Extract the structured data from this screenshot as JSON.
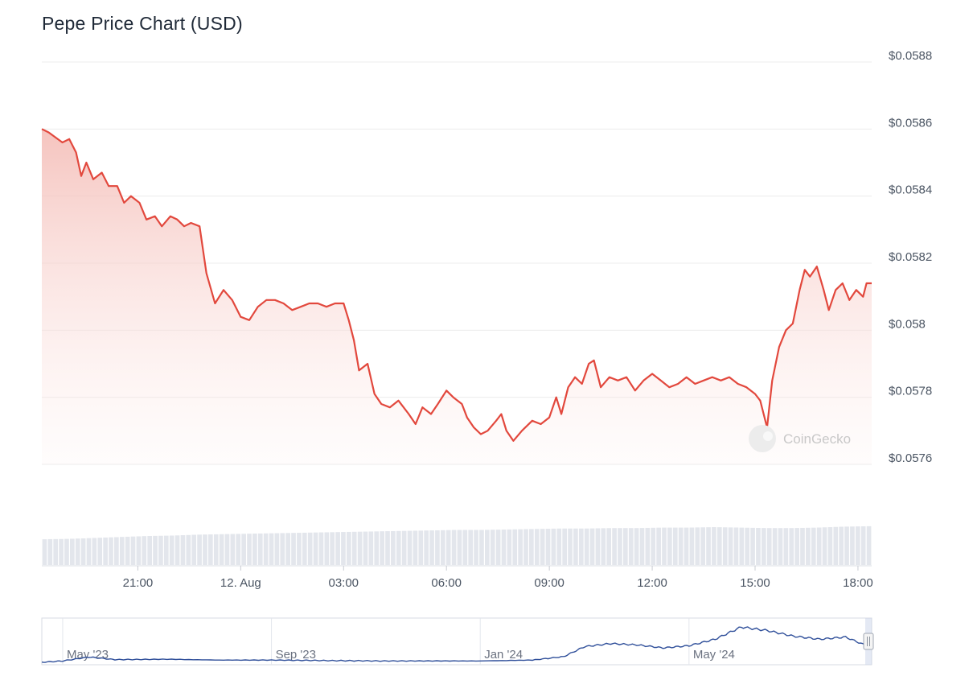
{
  "header": {
    "title": "Pepe Price Chart (USD)"
  },
  "watermark": {
    "text": "CoinGecko",
    "icon": "coingecko-logo-icon"
  },
  "colors": {
    "line": "#e2483d",
    "area_top": "#f6c8c3",
    "volume": "#e3e6ec",
    "navigator_line": "#2f4f9a",
    "grid": "#ececec"
  },
  "chart_data": {
    "type": "area",
    "title": "Pepe Price Chart (USD)",
    "y_ticks": [
      "$0.0576",
      "$0.0578",
      "$0.058",
      "$0.0582",
      "$0.0584",
      "$0.0586",
      "$0.0588"
    ],
    "ylim": [
      0.0576,
      0.0588
    ],
    "x_ticks": [
      "21:00",
      "12. Aug",
      "03:00",
      "06:00",
      "09:00",
      "12:00",
      "15:00",
      "18:00"
    ],
    "x_tick_hours": [
      21,
      24,
      27,
      30,
      33,
      36,
      39,
      42
    ],
    "xlim_hours": [
      18.2,
      42.4
    ],
    "price_points": [
      [
        18.2,
        0.0586
      ],
      [
        18.4,
        0.05859
      ],
      [
        18.8,
        0.05856
      ],
      [
        19.0,
        0.05857
      ],
      [
        19.2,
        0.05853
      ],
      [
        19.35,
        0.05846
      ],
      [
        19.5,
        0.0585
      ],
      [
        19.7,
        0.05845
      ],
      [
        19.95,
        0.05847
      ],
      [
        20.15,
        0.05843
      ],
      [
        20.4,
        0.05843
      ],
      [
        20.6,
        0.05838
      ],
      [
        20.8,
        0.0584
      ],
      [
        21.05,
        0.05838
      ],
      [
        21.25,
        0.05833
      ],
      [
        21.5,
        0.05834
      ],
      [
        21.7,
        0.05831
      ],
      [
        21.95,
        0.05834
      ],
      [
        22.15,
        0.05833
      ],
      [
        22.35,
        0.05831
      ],
      [
        22.55,
        0.05832
      ],
      [
        22.8,
        0.05831
      ],
      [
        23.0,
        0.05817
      ],
      [
        23.25,
        0.05808
      ],
      [
        23.5,
        0.05812
      ],
      [
        23.75,
        0.05809
      ],
      [
        24.0,
        0.05804
      ],
      [
        24.25,
        0.05803
      ],
      [
        24.5,
        0.05807
      ],
      [
        24.75,
        0.05809
      ],
      [
        25.0,
        0.05809
      ],
      [
        25.25,
        0.05808
      ],
      [
        25.5,
        0.05806
      ],
      [
        25.75,
        0.05807
      ],
      [
        26.0,
        0.05808
      ],
      [
        26.25,
        0.05808
      ],
      [
        26.5,
        0.05807
      ],
      [
        26.75,
        0.05808
      ],
      [
        27.0,
        0.05808
      ],
      [
        27.15,
        0.05803
      ],
      [
        27.3,
        0.05797
      ],
      [
        27.45,
        0.05788
      ],
      [
        27.7,
        0.0579
      ],
      [
        27.9,
        0.05781
      ],
      [
        28.1,
        0.05778
      ],
      [
        28.35,
        0.05777
      ],
      [
        28.6,
        0.05779
      ],
      [
        28.9,
        0.05775
      ],
      [
        29.1,
        0.05772
      ],
      [
        29.3,
        0.05777
      ],
      [
        29.55,
        0.05775
      ],
      [
        29.75,
        0.05778
      ],
      [
        30.0,
        0.05782
      ],
      [
        30.2,
        0.0578
      ],
      [
        30.45,
        0.05778
      ],
      [
        30.6,
        0.05774
      ],
      [
        30.8,
        0.05771
      ],
      [
        31.0,
        0.05769
      ],
      [
        31.2,
        0.0577
      ],
      [
        31.45,
        0.05773
      ],
      [
        31.6,
        0.05775
      ],
      [
        31.75,
        0.0577
      ],
      [
        31.95,
        0.05767
      ],
      [
        32.2,
        0.0577
      ],
      [
        32.5,
        0.05773
      ],
      [
        32.75,
        0.05772
      ],
      [
        33.0,
        0.05774
      ],
      [
        33.2,
        0.0578
      ],
      [
        33.35,
        0.05775
      ],
      [
        33.55,
        0.05783
      ],
      [
        33.75,
        0.05786
      ],
      [
        33.95,
        0.05784
      ],
      [
        34.15,
        0.0579
      ],
      [
        34.3,
        0.05791
      ],
      [
        34.5,
        0.05783
      ],
      [
        34.75,
        0.05786
      ],
      [
        35.0,
        0.05785
      ],
      [
        35.25,
        0.05786
      ],
      [
        35.5,
        0.05782
      ],
      [
        35.75,
        0.05785
      ],
      [
        36.0,
        0.05787
      ],
      [
        36.25,
        0.05785
      ],
      [
        36.5,
        0.05783
      ],
      [
        36.75,
        0.05784
      ],
      [
        37.0,
        0.05786
      ],
      [
        37.25,
        0.05784
      ],
      [
        37.5,
        0.05785
      ],
      [
        37.75,
        0.05786
      ],
      [
        38.0,
        0.05785
      ],
      [
        38.25,
        0.05786
      ],
      [
        38.5,
        0.05784
      ],
      [
        38.75,
        0.05783
      ],
      [
        39.0,
        0.05781
      ],
      [
        39.15,
        0.05779
      ],
      [
        39.35,
        0.05771
      ],
      [
        39.5,
        0.05785
      ],
      [
        39.7,
        0.05795
      ],
      [
        39.9,
        0.058
      ],
      [
        40.1,
        0.05802
      ],
      [
        40.3,
        0.05812
      ],
      [
        40.45,
        0.05818
      ],
      [
        40.6,
        0.05816
      ],
      [
        40.8,
        0.05819
      ],
      [
        41.0,
        0.05812
      ],
      [
        41.15,
        0.05806
      ],
      [
        41.35,
        0.05812
      ],
      [
        41.55,
        0.05814
      ],
      [
        41.75,
        0.05809
      ],
      [
        41.95,
        0.05812
      ],
      [
        42.15,
        0.0581
      ],
      [
        42.25,
        0.05814
      ],
      [
        42.4,
        0.05814
      ]
    ],
    "volume_relative": [
      0.55,
      0.56,
      0.58,
      0.6,
      0.62,
      0.63,
      0.65,
      0.66,
      0.67,
      0.68,
      0.69,
      0.7,
      0.71,
      0.72,
      0.73,
      0.74,
      0.75,
      0.75,
      0.76,
      0.77,
      0.78,
      0.78,
      0.79,
      0.79,
      0.8,
      0.8,
      0.81,
      0.8,
      0.79,
      0.79,
      0.8,
      0.82,
      0.83
    ],
    "navigator": {
      "x_ticks": [
        "May '23",
        "Sep '23",
        "Jan '24",
        "May '24"
      ],
      "x_tick_months": [
        0,
        4,
        8,
        12
      ],
      "xlim_months": [
        -0.4,
        15.5
      ],
      "series_relative": [
        [
          -0.4,
          0.02
        ],
        [
          0.0,
          0.05
        ],
        [
          0.5,
          0.14
        ],
        [
          1.0,
          0.08
        ],
        [
          2.0,
          0.09
        ],
        [
          3.0,
          0.07
        ],
        [
          4.0,
          0.07
        ],
        [
          5.0,
          0.06
        ],
        [
          6.0,
          0.05
        ],
        [
          7.0,
          0.05
        ],
        [
          8.0,
          0.05
        ],
        [
          9.0,
          0.07
        ],
        [
          9.6,
          0.15
        ],
        [
          10.0,
          0.38
        ],
        [
          10.5,
          0.45
        ],
        [
          11.0,
          0.42
        ],
        [
          11.5,
          0.35
        ],
        [
          12.0,
          0.4
        ],
        [
          12.5,
          0.55
        ],
        [
          13.0,
          0.83
        ],
        [
          13.5,
          0.75
        ],
        [
          14.0,
          0.62
        ],
        [
          14.5,
          0.55
        ],
        [
          15.0,
          0.6
        ],
        [
          15.5,
          0.35
        ]
      ]
    }
  }
}
